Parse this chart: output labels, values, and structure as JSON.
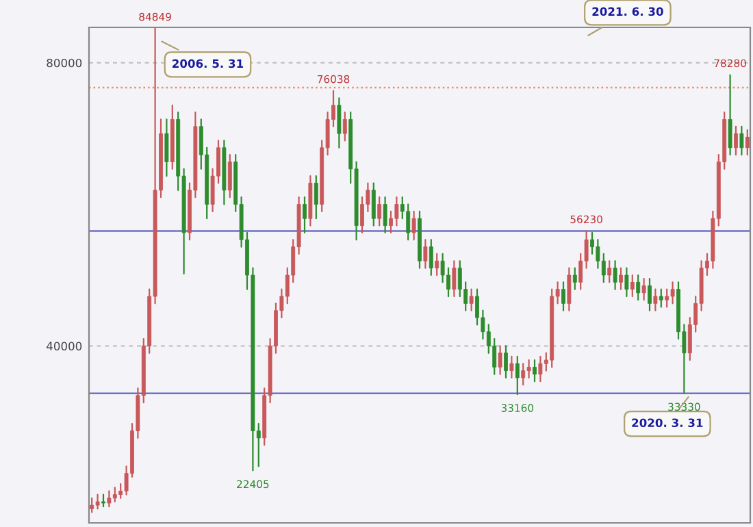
{
  "chart_data": {
    "type": "candlestick",
    "categories": [
      null,
      null,
      null,
      null,
      null,
      null,
      null,
      null,
      null,
      null,
      null,
      null,
      null,
      null,
      null,
      null,
      null,
      null,
      null,
      null,
      null,
      null,
      null,
      null,
      null,
      null,
      null,
      null,
      null,
      null,
      null,
      null,
      null,
      null,
      null,
      null,
      null,
      null,
      null,
      null,
      null,
      null,
      null,
      null,
      null,
      null,
      null,
      null,
      null,
      null,
      null,
      null,
      null,
      null,
      null,
      null,
      null,
      null,
      null,
      null,
      null,
      null,
      null,
      null,
      null,
      null,
      null,
      null,
      null,
      null,
      null,
      null,
      null,
      null,
      null,
      null,
      null,
      null,
      null,
      null,
      null,
      null,
      null,
      null,
      null,
      null,
      null,
      null,
      null,
      null,
      null,
      null,
      null,
      null,
      null,
      null,
      null,
      null,
      null,
      null,
      null,
      null,
      null,
      null,
      null,
      null,
      null,
      null,
      null,
      null,
      null,
      null,
      null,
      null,
      null
    ],
    "ohlc": [
      [
        17000,
        18500,
        16500,
        17500
      ],
      [
        17500,
        19000,
        17000,
        18000
      ],
      [
        18000,
        19000,
        17300,
        17800
      ],
      [
        17800,
        19500,
        17300,
        18500
      ],
      [
        18500,
        20000,
        18000,
        19000
      ],
      [
        19000,
        20500,
        18500,
        19500
      ],
      [
        19500,
        23000,
        19000,
        22000
      ],
      [
        22000,
        29000,
        21500,
        28000
      ],
      [
        28000,
        34000,
        27000,
        33000
      ],
      [
        33000,
        41000,
        32000,
        40000
      ],
      [
        40000,
        48000,
        39000,
        47000
      ],
      [
        47000,
        84849,
        46000,
        62000
      ],
      [
        62000,
        72000,
        61000,
        70000
      ],
      [
        70000,
        72000,
        64000,
        66000
      ],
      [
        66000,
        74000,
        65000,
        72000
      ],
      [
        72000,
        73000,
        62000,
        64000
      ],
      [
        64000,
        65000,
        50200,
        56000
      ],
      [
        56000,
        63000,
        55000,
        62000
      ],
      [
        62000,
        73000,
        61000,
        71000
      ],
      [
        71000,
        72000,
        65000,
        67000
      ],
      [
        67000,
        68000,
        58000,
        60000
      ],
      [
        60000,
        65000,
        59000,
        64000
      ],
      [
        64000,
        69000,
        63000,
        68000
      ],
      [
        68000,
        69000,
        60000,
        62000
      ],
      [
        62000,
        67000,
        61000,
        66000
      ],
      [
        66000,
        67000,
        59000,
        60000
      ],
      [
        60000,
        61000,
        54000,
        55000
      ],
      [
        55000,
        56000,
        48000,
        50000
      ],
      [
        50000,
        51000,
        22405,
        28000
      ],
      [
        28000,
        29000,
        23000,
        27000
      ],
      [
        27000,
        34000,
        26000,
        33000
      ],
      [
        33000,
        41000,
        32000,
        40000
      ],
      [
        40000,
        46000,
        39000,
        45000
      ],
      [
        45000,
        48000,
        44000,
        47000
      ],
      [
        47000,
        51000,
        46000,
        50000
      ],
      [
        50000,
        55000,
        49000,
        54000
      ],
      [
        54000,
        61000,
        53000,
        60000
      ],
      [
        60000,
        61000,
        56000,
        58000
      ],
      [
        58000,
        64000,
        57000,
        63000
      ],
      [
        63000,
        64000,
        58000,
        60000
      ],
      [
        60000,
        69000,
        59000,
        68000
      ],
      [
        68000,
        73000,
        67000,
        72000
      ],
      [
        72000,
        76038,
        71000,
        74000
      ],
      [
        74000,
        75000,
        68000,
        70000
      ],
      [
        70000,
        73000,
        69000,
        72000
      ],
      [
        72000,
        73000,
        63000,
        65000
      ],
      [
        65000,
        66000,
        55000,
        57000
      ],
      [
        57000,
        61000,
        56000,
        60000
      ],
      [
        60000,
        63000,
        59000,
        62000
      ],
      [
        62000,
        63000,
        57000,
        58000
      ],
      [
        58000,
        61000,
        57000,
        60000
      ],
      [
        60000,
        61000,
        56000,
        57000
      ],
      [
        57000,
        59000,
        56000,
        58000
      ],
      [
        58000,
        61000,
        57000,
        60000
      ],
      [
        60000,
        61000,
        58000,
        59000
      ],
      [
        59000,
        60000,
        55000,
        56000
      ],
      [
        56000,
        59000,
        55000,
        58000
      ],
      [
        58000,
        59000,
        51000,
        52000
      ],
      [
        52000,
        55000,
        51000,
        54000
      ],
      [
        54000,
        55000,
        50000,
        51000
      ],
      [
        51000,
        53000,
        50000,
        52000
      ],
      [
        52000,
        53000,
        49000,
        50000
      ],
      [
        50000,
        51000,
        47000,
        48000
      ],
      [
        48000,
        52000,
        47000,
        51000
      ],
      [
        51000,
        52000,
        47000,
        48000
      ],
      [
        48000,
        49000,
        45000,
        46000
      ],
      [
        46000,
        48000,
        45000,
        47000
      ],
      [
        47000,
        48000,
        43000,
        44000
      ],
      [
        44000,
        45000,
        41000,
        42000
      ],
      [
        42000,
        43000,
        39000,
        40000
      ],
      [
        40000,
        41000,
        36000,
        37000
      ],
      [
        37000,
        40000,
        36000,
        39000
      ],
      [
        39000,
        40000,
        35500,
        36500
      ],
      [
        36500,
        38500,
        35500,
        37500
      ],
      [
        37500,
        38500,
        33160,
        35500
      ],
      [
        35500,
        37500,
        34500,
        36500
      ],
      [
        36500,
        38000,
        35500,
        37000
      ],
      [
        37000,
        38000,
        35000,
        36000
      ],
      [
        36000,
        38500,
        35000,
        37500
      ],
      [
        37500,
        39000,
        36500,
        38000
      ],
      [
        38000,
        48000,
        37000,
        47000
      ],
      [
        47000,
        49000,
        46000,
        48000
      ],
      [
        48000,
        49000,
        45000,
        46000
      ],
      [
        46000,
        51000,
        45000,
        50000
      ],
      [
        50000,
        51000,
        48000,
        49000
      ],
      [
        49000,
        53000,
        48000,
        52000
      ],
      [
        52000,
        56230,
        51000,
        55000
      ],
      [
        55000,
        56000,
        53000,
        54000
      ],
      [
        54000,
        55000,
        51000,
        52000
      ],
      [
        52000,
        53000,
        49000,
        50000
      ],
      [
        50000,
        52000,
        49000,
        51000
      ],
      [
        51000,
        52000,
        48000,
        49000
      ],
      [
        49000,
        51000,
        48000,
        50000
      ],
      [
        50000,
        51000,
        47000,
        48000
      ],
      [
        48000,
        50000,
        47000,
        49000
      ],
      [
        49000,
        50000,
        46500,
        47500
      ],
      [
        47500,
        49500,
        46500,
        48500
      ],
      [
        48500,
        49500,
        45000,
        46000
      ],
      [
        46000,
        48000,
        45000,
        47000
      ],
      [
        47000,
        48000,
        45500,
        46500
      ],
      [
        46500,
        48000,
        45500,
        47000
      ],
      [
        47000,
        49000,
        46000,
        48000
      ],
      [
        48000,
        49000,
        41000,
        42000
      ],
      [
        42000,
        43000,
        33330,
        39000
      ],
      [
        39000,
        44000,
        38000,
        43000
      ],
      [
        43000,
        47000,
        42000,
        46000
      ],
      [
        46000,
        52000,
        45000,
        51000
      ],
      [
        51000,
        53000,
        50000,
        52000
      ],
      [
        52000,
        59000,
        51000,
        58000
      ],
      [
        58000,
        67000,
        57000,
        66000
      ],
      [
        66000,
        73000,
        65000,
        72000
      ],
      [
        72000,
        78280,
        67000,
        68000
      ],
      [
        68000,
        71000,
        67000,
        70000
      ],
      [
        70000,
        71000,
        67000,
        68000
      ],
      [
        68000,
        70500,
        67000,
        69500
      ]
    ],
    "ylim": [
      15000,
      85000
    ],
    "yticks": [
      40000,
      80000
    ],
    "grid": "y",
    "tick_labels": "y",
    "ref_lines": [
      {
        "axis": "y",
        "value": 76500,
        "color": "#f08a5d",
        "line_style": "dotted"
      },
      {
        "axis": "y",
        "value": 56230,
        "color": "#6f6fc8",
        "line_style": "solid"
      },
      {
        "axis": "y",
        "value": 33300,
        "color": "#6f6fc8",
        "line_style": "solid"
      }
    ],
    "annotations": [
      {
        "text": "84849",
        "y": 84849
      },
      {
        "text": "76038",
        "y": 76038
      },
      {
        "text": "78280",
        "y": 78280
      },
      {
        "text": "56230",
        "y": 56230
      },
      {
        "text": "22405",
        "y": 22405
      },
      {
        "text": "33160",
        "y": 33160
      },
      {
        "text": "33330",
        "y": 33330
      },
      "2006. 5. 31",
      "2021. 6. 30",
      "2020. 3. 31"
    ]
  }
}
